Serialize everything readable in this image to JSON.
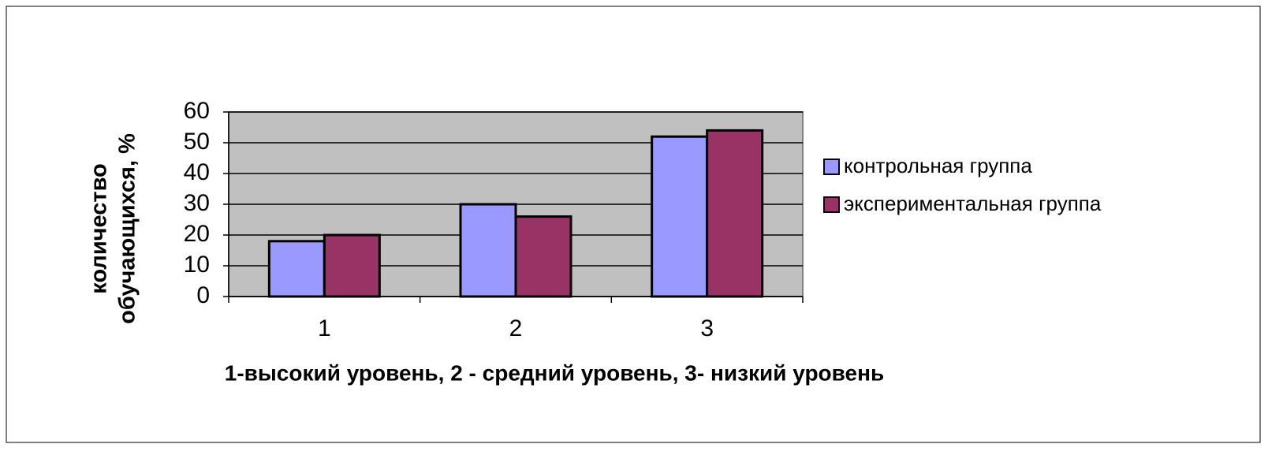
{
  "chart_data": {
    "type": "bar",
    "ylabel": [
      "количество",
      "обучающихся, %"
    ],
    "xlabel": "1-высокий уровень, 2 - средний уровень, 3- низкий уровень",
    "categories": [
      "1",
      "2",
      "3"
    ],
    "series": [
      {
        "name": "контрольная группа",
        "color": "#9999ff",
        "values": [
          18,
          30,
          52
        ]
      },
      {
        "name": "экспериментальная группа",
        "color": "#993366",
        "values": [
          20,
          26,
          54
        ]
      }
    ],
    "ylim": [
      0,
      60
    ],
    "yticks": [
      0,
      10,
      20,
      30,
      40,
      50,
      60
    ],
    "grid": true,
    "legend": "right"
  }
}
